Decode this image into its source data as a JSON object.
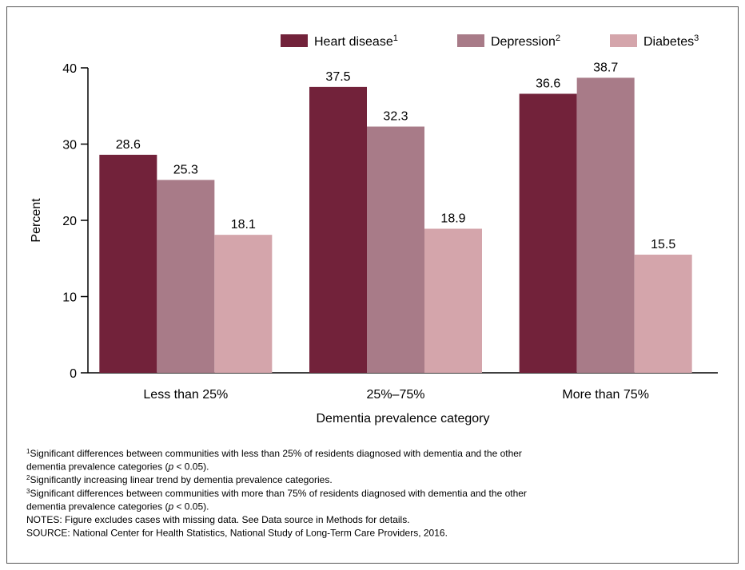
{
  "chart_data": {
    "type": "bar",
    "categories": [
      "Less than 25%",
      "25%–75%",
      "More than 75%"
    ],
    "series": [
      {
        "name": "Heart disease",
        "footnote_ref": "1",
        "color": "#72223a",
        "values": [
          28.6,
          37.5,
          36.6
        ]
      },
      {
        "name": "Depression",
        "footnote_ref": "2",
        "color": "#a87b88",
        "values": [
          25.3,
          32.3,
          38.7
        ]
      },
      {
        "name": "Diabetes",
        "footnote_ref": "3",
        "color": "#d4a5ab",
        "values": [
          18.1,
          18.9,
          15.5
        ]
      }
    ],
    "ylim": [
      0,
      40
    ],
    "yticks": [
      0,
      10,
      20,
      30,
      40
    ],
    "ylabel": "Percent",
    "xlabel": "Dementia prevalence category",
    "legend": "top-right",
    "footnotes": [
      {
        "marker": "1",
        "lines": [
          [
            {
              "text": "Significant differences between communities with less than 25% of residents diagnosed with dementia and the other"
            }
          ],
          [
            {
              "text": "dementia prevalence categories ("
            },
            {
              "text": "p",
              "italic": true
            },
            {
              "text": " < 0.05)."
            }
          ]
        ]
      },
      {
        "marker": "2",
        "lines": [
          [
            {
              "text": "Significantly increasing linear trend by dementia prevalence categories."
            }
          ]
        ]
      },
      {
        "marker": "3",
        "lines": [
          [
            {
              "text": "Significant differences between communities with more than 75% of residents diagnosed with dementia and the other"
            }
          ],
          [
            {
              "text": "dementia prevalence categories ("
            },
            {
              "text": "p",
              "italic": true
            },
            {
              "text": " < 0.05)."
            }
          ]
        ]
      },
      {
        "lines": [
          [
            {
              "text": "NOTES: Figure excludes cases with missing data. See Data source in Methods for details."
            }
          ]
        ]
      },
      {
        "lines": [
          [
            {
              "text": "SOURCE: National Center for Health Statistics, National Study of Long-Term Care Providers, 2016."
            }
          ]
        ]
      }
    ]
  }
}
